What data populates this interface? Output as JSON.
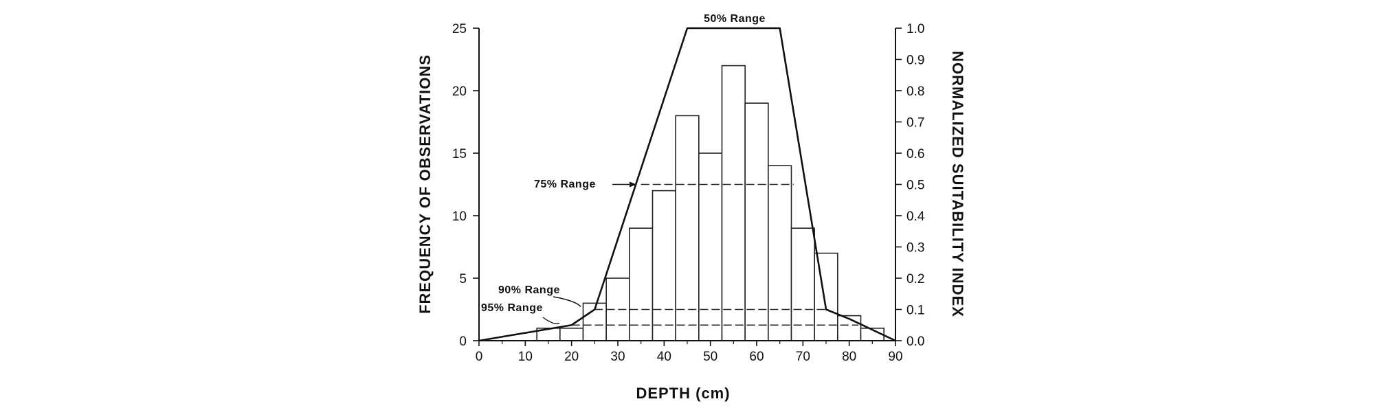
{
  "chart_data": {
    "type": "bar",
    "xlabel": "DEPTH (cm)",
    "ylabel_left": "FREQUENCY OF OBSERVATIONS",
    "ylabel_right": "NORMALIZED SUITABILITY INDEX",
    "x_ticks": [
      0,
      10,
      20,
      30,
      40,
      50,
      60,
      70,
      80,
      90
    ],
    "x_range": [
      0,
      90
    ],
    "y_left_ticks": [
      0,
      5,
      10,
      15,
      20,
      25
    ],
    "y_left_range": [
      0,
      25
    ],
    "y_right_ticks": [
      "0.0",
      "0.1",
      "0.2",
      "0.3",
      "0.4",
      "0.5",
      "0.6",
      "0.7",
      "0.8",
      "0.9",
      "1.0"
    ],
    "y_right_range": [
      0,
      1
    ],
    "histogram": {
      "bin_width": 5,
      "bins": [
        {
          "from": 12.5,
          "to": 17.5,
          "count": 1
        },
        {
          "from": 17.5,
          "to": 22.5,
          "count": 1
        },
        {
          "from": 22.5,
          "to": 27.5,
          "count": 3
        },
        {
          "from": 27.5,
          "to": 32.5,
          "count": 5
        },
        {
          "from": 32.5,
          "to": 37.5,
          "count": 9
        },
        {
          "from": 37.5,
          "to": 42.5,
          "count": 12
        },
        {
          "from": 42.5,
          "to": 47.5,
          "count": 18
        },
        {
          "from": 47.5,
          "to": 52.5,
          "count": 15
        },
        {
          "from": 52.5,
          "to": 57.5,
          "count": 22
        },
        {
          "from": 57.5,
          "to": 62.5,
          "count": 19
        },
        {
          "from": 62.5,
          "to": 67.5,
          "count": 14
        },
        {
          "from": 67.5,
          "to": 72.5,
          "count": 9
        },
        {
          "from": 72.5,
          "to": 77.5,
          "count": 7
        },
        {
          "from": 77.5,
          "to": 82.5,
          "count": 2
        },
        {
          "from": 82.5,
          "to": 87.5,
          "count": 1
        }
      ]
    },
    "suitability_curve": {
      "x": [
        0,
        20,
        25,
        45,
        65,
        75,
        80,
        90
      ],
      "y": [
        0.0,
        0.05,
        0.1,
        1.0,
        1.0,
        0.1,
        0.07,
        0.0
      ]
    },
    "ranges": [
      {
        "label": "50% Range",
        "index": 1.0,
        "from": 45,
        "to": 65
      },
      {
        "label": "75% Range",
        "index": 0.5,
        "from": 35,
        "to": 68
      },
      {
        "label": "90% Range",
        "index": 0.1,
        "from": 25,
        "to": 75
      },
      {
        "label": "95% Range",
        "index": 0.05,
        "from": 20,
        "to": 82
      }
    ]
  }
}
